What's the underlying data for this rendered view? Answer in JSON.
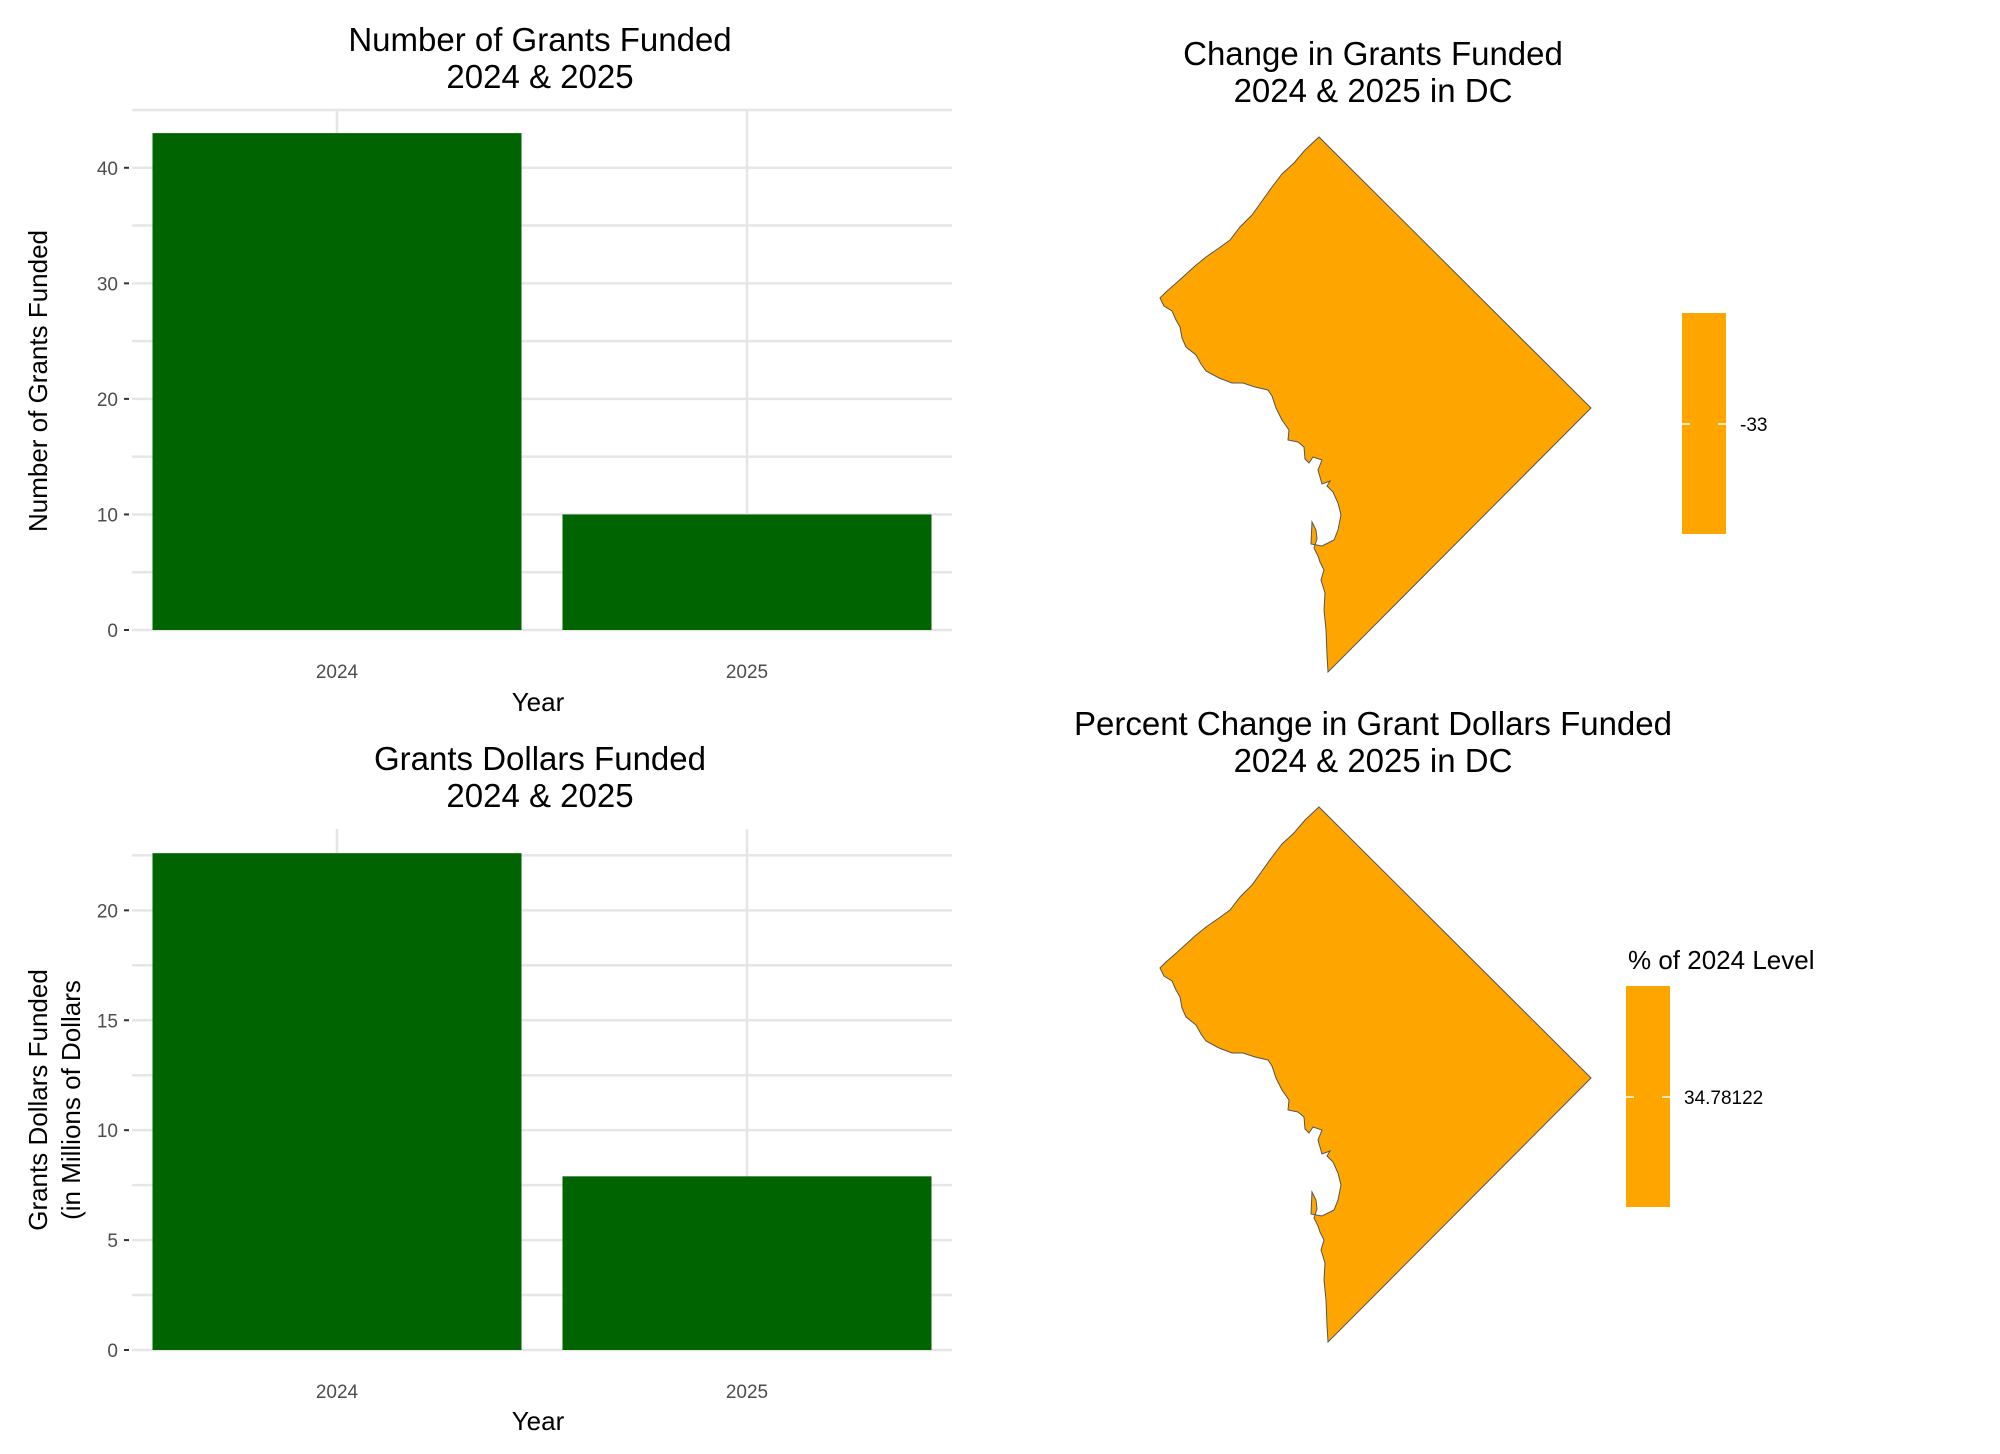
{
  "chart_data": [
    {
      "type": "bar",
      "title": "Number of Grants Funded",
      "subtitle": "2024 & 2025",
      "xlabel": "Year",
      "ylabel": "Number of Grants Funded",
      "ylabel_line2": "",
      "categories": [
        "2024",
        "2025"
      ],
      "values": [
        43,
        10
      ],
      "ylim": [
        0,
        45
      ],
      "yticks": [
        0,
        10,
        20,
        30,
        40
      ],
      "bar_color": "#006400",
      "grid": true
    },
    {
      "type": "bar",
      "title": "Grants Dollars Funded",
      "subtitle": "2024 & 2025",
      "xlabel": "Year",
      "ylabel": "Grants Dollars Funded",
      "ylabel_line2": "(in Millions of Dollars",
      "categories": [
        "2024",
        "2025"
      ],
      "values": [
        22.6,
        7.9
      ],
      "ylim": [
        0,
        23.7
      ],
      "yticks": [
        0,
        5,
        10,
        15,
        20
      ],
      "bar_color": "#006400",
      "grid": true
    },
    {
      "type": "map",
      "title": "Change in Grants Funded",
      "subtitle": "2024 & 2025 in DC",
      "region": "DC",
      "value": -33,
      "fill_color": "#FFA500",
      "legend": {
        "title": "",
        "labels": [
          "-33"
        ],
        "position": "right"
      }
    },
    {
      "type": "map",
      "title": "Percent Change in Grant Dollars Funded",
      "subtitle": "2024 & 2025 in DC",
      "region": "DC",
      "value": 34.78122,
      "fill_color": "#FFA500",
      "legend": {
        "title": "% of 2024 Level",
        "labels": [
          "34.78122"
        ],
        "position": "right"
      }
    }
  ]
}
